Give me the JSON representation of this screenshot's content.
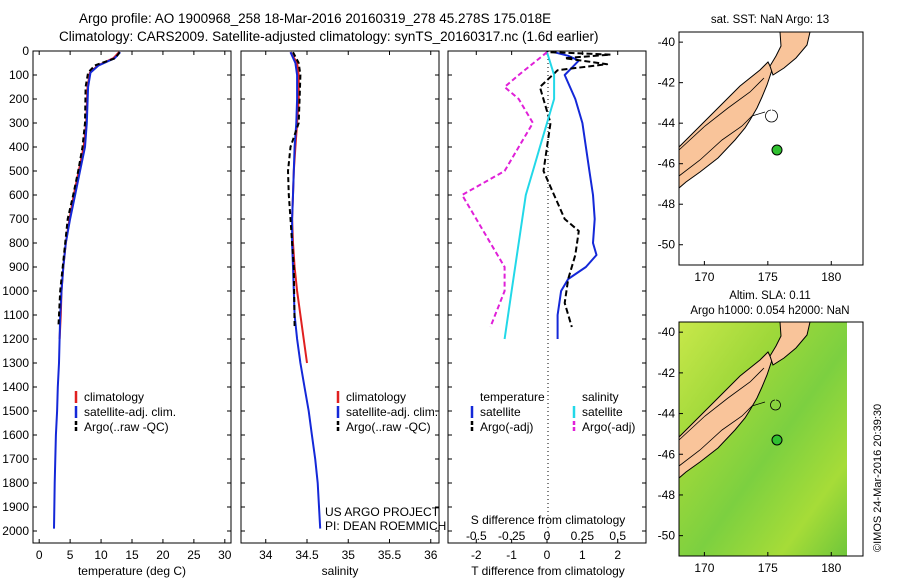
{
  "title_line1": "Argo profile: AO 1900968_258 18-Mar-2016 20160319_278 45.278S 175.018E",
  "title_line2": "Climatology: CARS2009. Satellite-adjusted climatology: synTS_20160317.nc (1.6d earlier)",
  "map1_title": "sat. SST: NaN Argo: 13",
  "map2_title_line1": "Altim. SLA: 0.11",
  "map2_title_line2": "Argo h1000: 0.054 h2000: NaN",
  "stamp": "©IMOS 24-Mar-2016 20:39:30",
  "project_line1": "US ARGO PROJECT",
  "project_line2": "PI: DEAN ROEMMICH",
  "colors": {
    "climatology": "#e02020",
    "satellite": "#1428d8",
    "argo": "#000000",
    "sal_satellite": "#22d8e8",
    "sal_argo": "#e020d8",
    "land": "#f9c49a",
    "marker": "#30c030"
  },
  "chart_data": [
    {
      "type": "line",
      "xlabel": "temperature (deg C)",
      "xlim": [
        -1,
        31
      ],
      "ylim": [
        2050,
        0
      ],
      "xticks": [
        "0",
        "5",
        "10",
        "15",
        "20",
        "25",
        "30"
      ],
      "yticks": [
        "0",
        "100",
        "200",
        "300",
        "400",
        "500",
        "600",
        "700",
        "800",
        "900",
        "1000",
        "1100",
        "1200",
        "1300",
        "1400",
        "1500",
        "1600",
        "1700",
        "1800",
        "1900",
        "2000"
      ],
      "legend": [
        "climatology",
        "satellite-adj. clim.",
        "Argo(..raw -QC)"
      ],
      "series": [
        {
          "name": "climatology",
          "x": [
            12.9,
            12.0,
            9.5,
            8.2,
            7.8,
            7.6,
            7.2,
            6.4,
            5.6,
            4.9,
            4.3,
            3.9,
            3.6,
            3.5,
            3.3
          ],
          "y": [
            5,
            30,
            60,
            90,
            150,
            300,
            400,
            500,
            600,
            700,
            800,
            900,
            1000,
            1100,
            1200
          ]
        },
        {
          "name": "satellite-adj. clim.",
          "x": [
            13.1,
            12.2,
            9.6,
            8.3,
            7.9,
            7.7,
            7.4,
            6.6,
            5.8,
            5.0,
            4.3,
            3.9,
            3.6,
            3.4,
            3.3,
            3.2,
            3.0,
            2.9,
            2.7,
            2.6,
            2.5,
            2.4
          ],
          "y": [
            5,
            30,
            60,
            90,
            150,
            300,
            400,
            500,
            600,
            700,
            800,
            900,
            1000,
            1100,
            1200,
            1300,
            1400,
            1500,
            1600,
            1700,
            1800,
            1990
          ]
        },
        {
          "name": "Argo(..raw -QC)",
          "x": [
            13.0,
            12.3,
            9.0,
            7.9,
            7.5,
            7.4,
            7.0,
            6.3,
            5.5,
            4.6,
            4.2,
            3.8,
            3.4,
            3.1
          ],
          "y": [
            5,
            30,
            60,
            90,
            150,
            300,
            400,
            500,
            600,
            700,
            800,
            900,
            1000,
            1150
          ]
        }
      ]
    },
    {
      "type": "line",
      "xlabel": "salinity",
      "xlim": [
        33.7,
        36.1
      ],
      "ylim": [
        2050,
        0
      ],
      "xticks": [
        "34",
        "34.5",
        "35",
        "35.5",
        "36"
      ],
      "legend": [
        "climatology",
        "satellite-adj. clim.",
        "Argo(..raw -QC)"
      ],
      "series": [
        {
          "name": "climatology",
          "x": [
            34.3,
            34.38,
            34.4,
            34.4,
            34.38,
            34.36,
            34.34,
            34.33,
            34.32,
            34.33,
            34.35,
            34.38,
            34.42,
            34.46,
            34.5
          ],
          "y": [
            5,
            50,
            100,
            200,
            300,
            400,
            500,
            600,
            700,
            800,
            900,
            1000,
            1100,
            1200,
            1300
          ]
        },
        {
          "name": "satellite-adj. clim.",
          "x": [
            34.3,
            34.36,
            34.38,
            34.38,
            34.37,
            34.35,
            34.34,
            34.33,
            34.32,
            34.32,
            34.33,
            34.34,
            34.35,
            34.38,
            34.42,
            34.47,
            34.52,
            34.56,
            34.6,
            34.63,
            34.66
          ],
          "y": [
            5,
            50,
            100,
            200,
            300,
            400,
            500,
            600,
            700,
            800,
            900,
            1000,
            1100,
            1200,
            1300,
            1400,
            1500,
            1600,
            1700,
            1800,
            1990
          ]
        },
        {
          "name": "Argo(..raw -QC)",
          "x": [
            34.33,
            34.4,
            34.42,
            34.41,
            34.4,
            34.3,
            34.27,
            34.28,
            34.3,
            34.32,
            34.34,
            34.35
          ],
          "y": [
            5,
            50,
            100,
            200,
            300,
            400,
            500,
            600,
            700,
            800,
            900,
            1150
          ]
        }
      ]
    },
    {
      "type": "line",
      "xlabel": "T difference from climatology",
      "xlabel_top": "S difference from climatology",
      "xlim": [
        -2.8,
        2.8
      ],
      "ylim": [
        2050,
        0
      ],
      "xticks": [
        "-2",
        "-1",
        "0",
        "1",
        "2"
      ],
      "xticks_top": [
        "-0.5",
        "-0.25",
        "0",
        "0.25",
        "0.5"
      ],
      "legend_headers": [
        "temperature",
        "salinity"
      ],
      "legend": [
        "satellite",
        "Argo(-adj)",
        "satellite",
        "Argo(-adj)"
      ],
      "series": [
        {
          "name": "satellite",
          "x": [
            0.2,
            0.6,
            0.9,
            0.7,
            0.5,
            0.8,
            1.0,
            1.1,
            1.2,
            1.3,
            1.35,
            1.3,
            1.4,
            1.1,
            0.6,
            0.4,
            0.3,
            0.3
          ],
          "y": [
            5,
            20,
            40,
            70,
            100,
            200,
            300,
            400,
            500,
            600,
            700,
            800,
            850,
            900,
            950,
            1000,
            1100,
            1200
          ]
        },
        {
          "name": "Argo(-adj)",
          "x": [
            0.1,
            1.8,
            0.5,
            1.7,
            0.3,
            -0.2,
            0.1,
            0.0,
            -0.1,
            0.2,
            0.5,
            0.9,
            0.8,
            0.6,
            0.5,
            0.7
          ],
          "y": [
            5,
            15,
            30,
            55,
            80,
            150,
            300,
            400,
            500,
            600,
            700,
            750,
            850,
            950,
            1050,
            1150
          ]
        },
        {
          "name": "satellite",
          "x": [
            0.0,
            0.05,
            0.05,
            0.0,
            -0.05,
            -0.1,
            -0.15,
            -0.2,
            -0.25,
            -0.3
          ],
          "y": [
            5,
            100,
            200,
            300,
            400,
            500,
            600,
            800,
            1000,
            1200
          ]
        },
        {
          "name": "Argo(-adj)",
          "x": [
            0.0,
            -0.2,
            -0.3,
            -0.2,
            -0.1,
            -0.2,
            -0.3,
            -0.6,
            -0.5,
            -0.4,
            -0.3,
            -0.3,
            -0.4
          ],
          "y": [
            5,
            100,
            150,
            200,
            300,
            400,
            500,
            600,
            700,
            800,
            900,
            1000,
            1150
          ]
        }
      ]
    },
    {
      "type": "map",
      "title": "sat. SST: NaN Argo: 13",
      "xlim": [
        168,
        182.5
      ],
      "ylim": [
        -51,
        -39.5
      ],
      "xticks": [
        "170",
        "175",
        "180"
      ],
      "yticks": [
        "-40",
        "-42",
        "-44",
        "-46",
        "-48",
        "-50"
      ],
      "float_position": {
        "lon": 175.018,
        "lat": -45.278
      }
    },
    {
      "type": "map",
      "title": "Altim. SLA: 0.11 / Argo h1000: 0.054 h2000: NaN",
      "xlim": [
        168,
        182.5
      ],
      "ylim": [
        -51,
        -39.5
      ],
      "xticks": [
        "170",
        "175",
        "180"
      ],
      "yticks": [
        "-40",
        "-42",
        "-44",
        "-46",
        "-48",
        "-50"
      ],
      "float_position": {
        "lon": 175.018,
        "lat": -45.278
      }
    }
  ]
}
